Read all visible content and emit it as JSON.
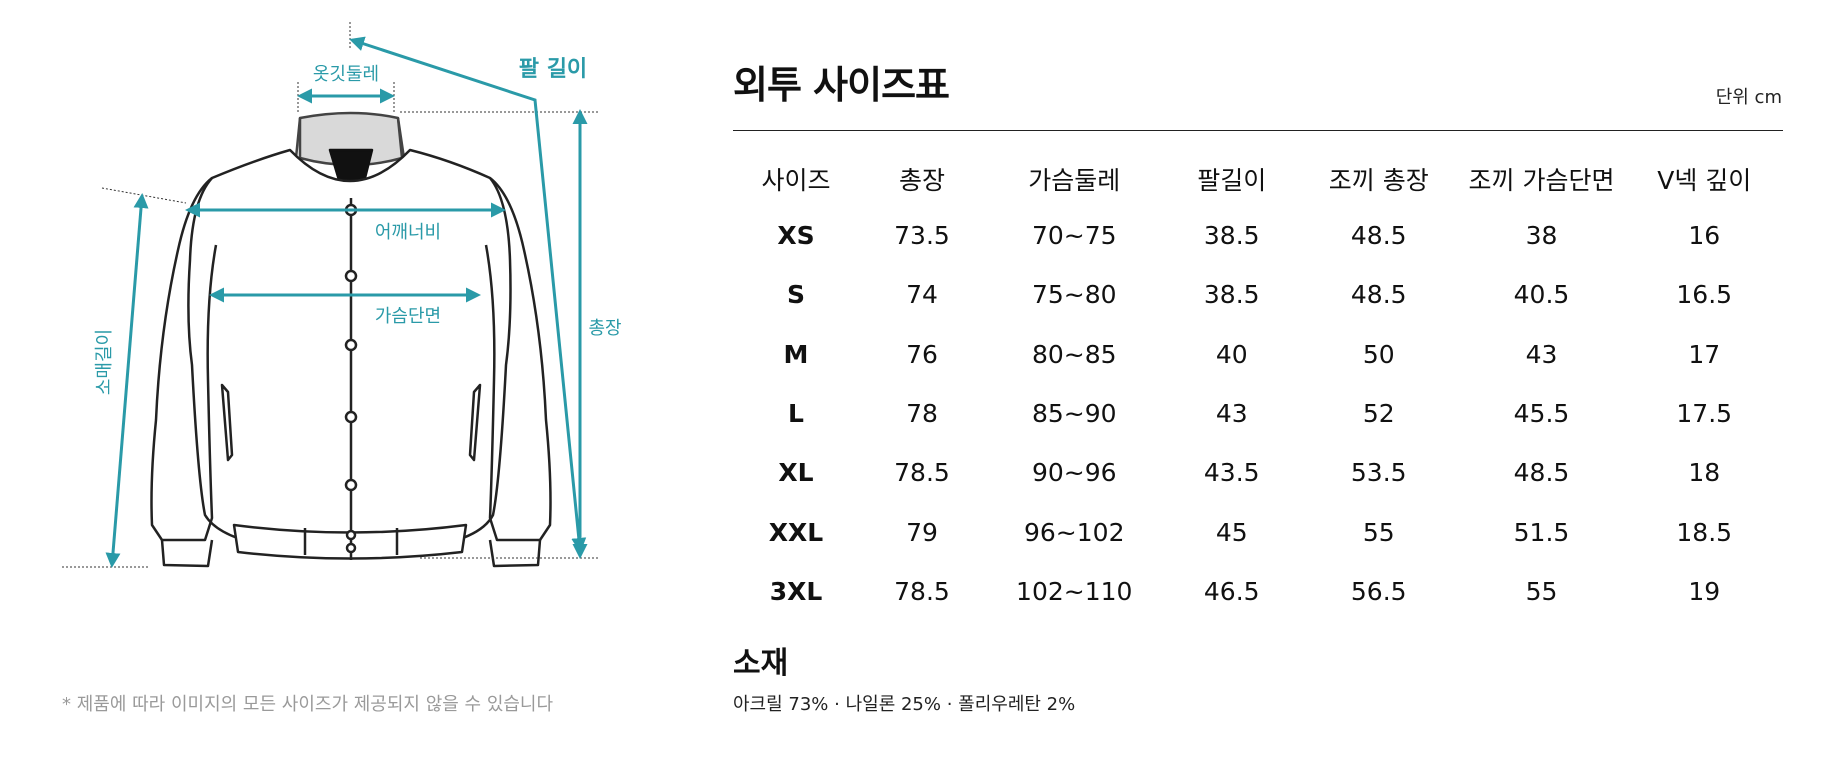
{
  "diagram": {
    "labels": {
      "collar": "옷깃둘레",
      "arm_length": "팔 길이",
      "shoulder": "어깨너비",
      "chest_half": "가슴단면",
      "sleeve": "소매길이",
      "total_length": "총장"
    },
    "accent_color": "#2a9aa8"
  },
  "disclaimer": "* 제품에 따라 이미지의 모든 사이즈가 제공되지 않을 수 있습니다",
  "title": "외투 사이즈표",
  "unit": "단위 cm",
  "table": {
    "headers": [
      "사이즈",
      "총장",
      "가슴둘레",
      "팔길이",
      "조끼 총장",
      "조끼 가슴단면",
      "V넥 깊이"
    ],
    "rows": [
      [
        "XS",
        "73.5",
        "70~75",
        "38.5",
        "48.5",
        "38",
        "16"
      ],
      [
        "S",
        "74",
        "75~80",
        "38.5",
        "48.5",
        "40.5",
        "16.5"
      ],
      [
        "M",
        "76",
        "80~85",
        "40",
        "50",
        "43",
        "17"
      ],
      [
        "L",
        "78",
        "85~90",
        "43",
        "52",
        "45.5",
        "17.5"
      ],
      [
        "XL",
        "78.5",
        "90~96",
        "43.5",
        "53.5",
        "48.5",
        "18"
      ],
      [
        "XXL",
        "79",
        "96~102",
        "45",
        "55",
        "51.5",
        "18.5"
      ],
      [
        "3XL",
        "78.5",
        "102~110",
        "46.5",
        "56.5",
        "55",
        "19"
      ]
    ]
  },
  "material": {
    "title": "소재",
    "text": "아크릴 73% · 나일론 25% · 폴리우레탄 2%"
  }
}
